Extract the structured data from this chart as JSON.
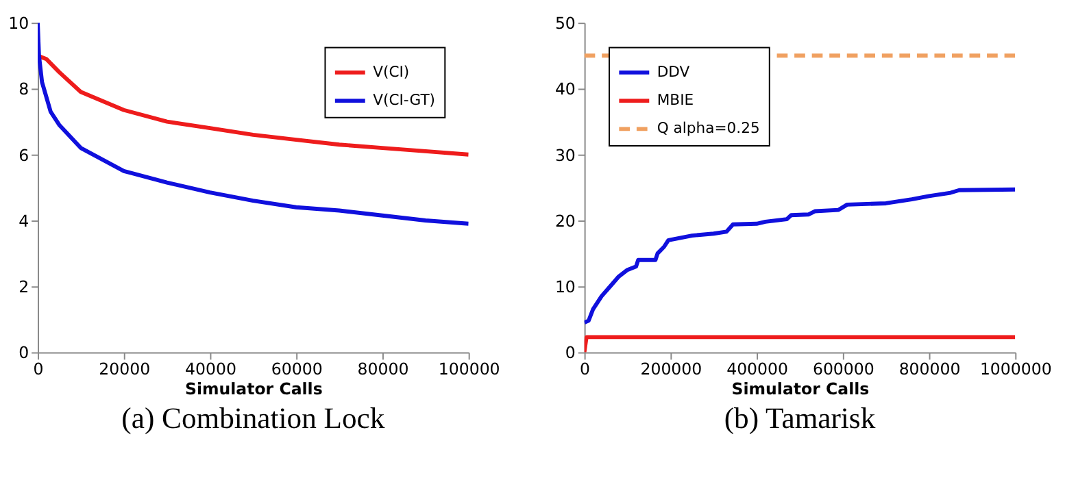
{
  "chart_data": [
    {
      "type": "line",
      "title": "(a) Combination Lock",
      "xlabel": "Simulator Calls",
      "xlim": [
        0,
        100000
      ],
      "xticks": [
        0,
        20000,
        40000,
        60000,
        80000,
        100000
      ],
      "ylim": [
        0,
        10
      ],
      "yticks": [
        0,
        2,
        4,
        6,
        8,
        10
      ],
      "grid": false,
      "legend": "top right",
      "marker": "none",
      "line_style": "solid",
      "series": [
        {
          "name": "V(CI)",
          "color": "#ee1c1c",
          "x": [
            0,
            2000,
            5000,
            10000,
            20000,
            30000,
            40000,
            50000,
            60000,
            70000,
            80000,
            90000,
            100000
          ],
          "values": [
            9.0,
            8.9,
            8.5,
            7.9,
            7.35,
            7.0,
            6.8,
            6.6,
            6.45,
            6.3,
            6.2,
            6.1,
            6.0
          ]
        },
        {
          "name": "V(CI-GT)",
          "color": "#1010dd",
          "x": [
            0,
            300,
            1000,
            3000,
            5000,
            10000,
            20000,
            30000,
            40000,
            50000,
            60000,
            70000,
            80000,
            90000,
            100000
          ],
          "values": [
            10,
            9,
            8.2,
            7.3,
            6.9,
            6.2,
            5.5,
            5.15,
            4.85,
            4.6,
            4.4,
            4.3,
            4.15,
            4.0,
            3.9
          ]
        }
      ]
    },
    {
      "type": "line",
      "title": "(b) Tamarisk",
      "xlabel": "Simulator Calls",
      "xlim": [
        0,
        1000000
      ],
      "xticks": [
        0,
        200000,
        400000,
        600000,
        800000,
        1000000
      ],
      "ylim": [
        0,
        50
      ],
      "yticks": [
        0,
        10,
        20,
        30,
        40,
        50
      ],
      "grid": false,
      "legend": "top left",
      "marker": "none",
      "series": [
        {
          "name": "DDV",
          "color": "#1010dd",
          "line_style": "solid",
          "x": [
            0,
            10000,
            20000,
            40000,
            60000,
            80000,
            100000,
            120000,
            125000,
            165000,
            170000,
            185000,
            195000,
            250000,
            300000,
            330000,
            345000,
            400000,
            420000,
            470000,
            480000,
            520000,
            535000,
            590000,
            610000,
            700000,
            760000,
            800000,
            850000,
            870000,
            1000000
          ],
          "values": [
            4.5,
            4.8,
            6.5,
            8.5,
            10,
            11.5,
            12.5,
            13,
            14,
            14,
            15,
            16,
            17,
            17.7,
            18,
            18.3,
            19.4,
            19.5,
            19.8,
            20.2,
            20.8,
            20.9,
            21.4,
            21.6,
            22.4,
            22.6,
            23.2,
            23.7,
            24.2,
            24.6,
            24.7
          ]
        },
        {
          "name": "MBIE",
          "color": "#ee1c1c",
          "line_style": "solid",
          "x": [
            0,
            5000,
            1000000
          ],
          "values": [
            0,
            2.3,
            2.3
          ]
        },
        {
          "name": "Q alpha=0.25",
          "color": "#f0a060",
          "line_style": "dashed",
          "x": [
            0,
            1000000
          ],
          "values": [
            45,
            45
          ]
        }
      ]
    }
  ]
}
